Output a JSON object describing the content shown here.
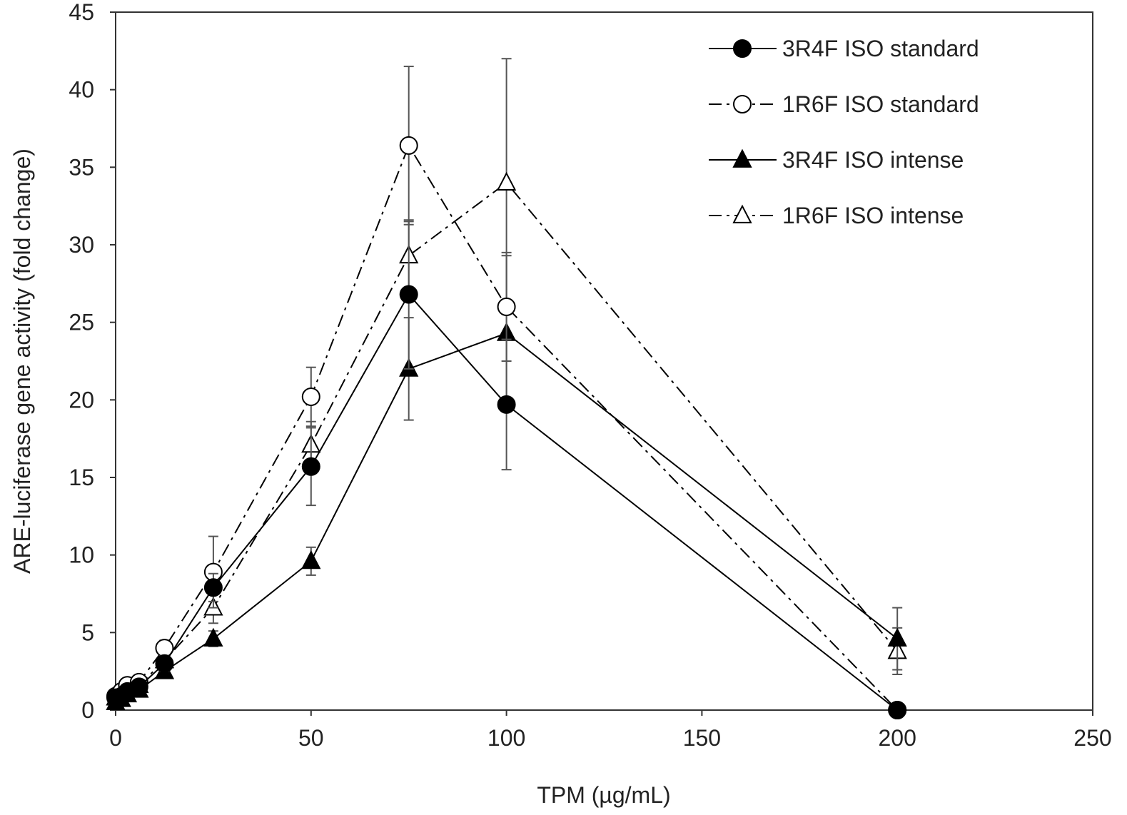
{
  "chart_data": {
    "type": "line",
    "title": "",
    "xlabel": "TPM (µg/mL)",
    "ylabel": "ARE-luciferase gene activity (fold change)",
    "xlim": [
      0,
      250
    ],
    "ylim": [
      0,
      45
    ],
    "xticks": [
      0,
      50,
      100,
      150,
      200,
      250
    ],
    "yticks": [
      0,
      5,
      10,
      15,
      20,
      25,
      30,
      35,
      40,
      45
    ],
    "grid": false,
    "legend_position": "top-right",
    "series": [
      {
        "name": "3R4F ISO standard",
        "marker": "circle-filled",
        "line": "solid",
        "x": [
          0,
          1.5,
          3,
          6,
          12.5,
          25,
          50,
          75,
          100,
          200
        ],
        "y": [
          0.8,
          0.9,
          1.2,
          1.5,
          3.0,
          7.9,
          15.7,
          26.8,
          19.7,
          0
        ],
        "err": [
          0.2,
          0.2,
          0.3,
          0.3,
          0.5,
          0.9,
          2.5,
          4.8,
          4.2,
          0
        ]
      },
      {
        "name": "1R6F ISO standard",
        "marker": "circle-open",
        "line": "dashdot",
        "x": [
          0,
          1.5,
          3,
          6,
          12.5,
          25,
          50,
          75,
          100,
          200
        ],
        "y": [
          0.9,
          1.2,
          1.6,
          1.8,
          4.0,
          8.9,
          20.2,
          36.4,
          26.0,
          0
        ],
        "err": [
          0.2,
          0.3,
          0.3,
          0.3,
          0.5,
          2.3,
          1.9,
          5.1,
          3.5,
          0
        ]
      },
      {
        "name": "3R4F ISO intense",
        "marker": "triangle-filled",
        "line": "solid",
        "x": [
          0,
          1.5,
          3,
          6,
          12.5,
          25,
          50,
          75,
          100,
          200
        ],
        "y": [
          0.5,
          0.7,
          1.0,
          1.3,
          2.5,
          4.6,
          9.6,
          22.0,
          24.3,
          4.6
        ],
        "err": [
          0.2,
          0.2,
          0.2,
          0.3,
          0.4,
          0.5,
          0.9,
          3.3,
          5.0,
          2.0
        ]
      },
      {
        "name": "1R6F ISO intense",
        "marker": "triangle-open",
        "line": "dashdot",
        "x": [
          0,
          1.5,
          3,
          6,
          12.5,
          25,
          50,
          75,
          100,
          200
        ],
        "y": [
          0.8,
          1.1,
          1.4,
          1.6,
          3.2,
          6.6,
          17.1,
          29.3,
          34.0,
          3.8
        ],
        "err": [
          0.2,
          0.2,
          0.3,
          0.3,
          0.5,
          1.0,
          1.5,
          2.2,
          8.0,
          1.5
        ]
      }
    ]
  }
}
